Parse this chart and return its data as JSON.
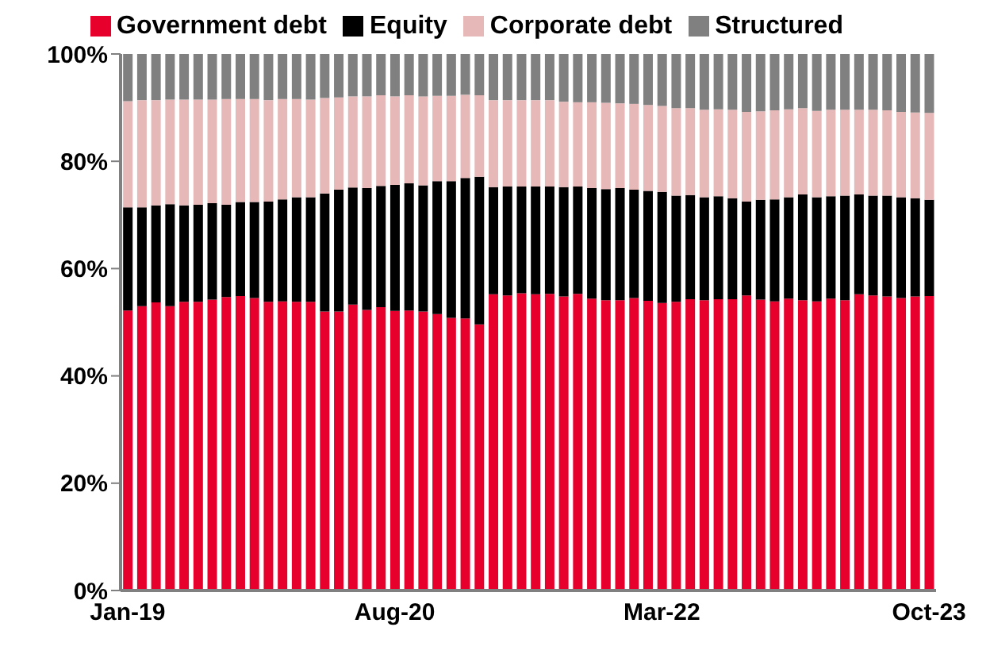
{
  "chart_data": {
    "type": "bar",
    "stacked": true,
    "legend": "top",
    "grid": false,
    "categories": [
      "Jan-19",
      null,
      null,
      null,
      null,
      null,
      null,
      null,
      null,
      null,
      null,
      null,
      null,
      null,
      null,
      null,
      null,
      null,
      null,
      "Aug-20",
      null,
      null,
      null,
      null,
      null,
      null,
      null,
      null,
      null,
      null,
      null,
      null,
      null,
      null,
      null,
      null,
      null,
      null,
      "Mar-22",
      null,
      null,
      null,
      null,
      null,
      null,
      null,
      null,
      null,
      null,
      null,
      null,
      null,
      null,
      null,
      null,
      null,
      null,
      "Oct-23"
    ],
    "ylim": [
      0,
      100
    ],
    "yticks": [
      {
        "value": 0,
        "label": "0%"
      },
      {
        "value": 20,
        "label": "20%"
      },
      {
        "value": 40,
        "label": "40%"
      },
      {
        "value": 60,
        "label": "60%"
      },
      {
        "value": 80,
        "label": "80%"
      },
      {
        "value": 100,
        "label": "100%"
      }
    ],
    "series": [
      {
        "name": "Government debt",
        "color": "#e8002d",
        "values": [
          52.2,
          53.0,
          53.7,
          53.0,
          53.8,
          53.8,
          54.2,
          54.7,
          54.9,
          54.5,
          53.8,
          53.9,
          53.8,
          53.8,
          52.0,
          52.0,
          53.3,
          52.3,
          52.8,
          52.1,
          52.2,
          52.0,
          51.5,
          50.8,
          50.7,
          49.6,
          55.2,
          55.0,
          55.4,
          55.2,
          55.3,
          54.8,
          55.3,
          54.4,
          54.1,
          54.1,
          54.5,
          54.0,
          53.6,
          53.8,
          54.3,
          54.1,
          54.3,
          54.3,
          55.0,
          54.2,
          53.9,
          54.4,
          54.1,
          53.9,
          54.4,
          54.1,
          55.2,
          55.0,
          54.8,
          54.5,
          54.8,
          54.9
        ]
      },
      {
        "name": "Equity",
        "color": "#000000",
        "values": [
          19.2,
          18.4,
          18.1,
          19.0,
          18.0,
          18.1,
          18.0,
          17.2,
          17.5,
          17.9,
          18.7,
          19.0,
          19.5,
          19.5,
          22.0,
          22.7,
          21.8,
          22.7,
          22.6,
          23.5,
          23.7,
          23.5,
          24.8,
          25.5,
          26.2,
          27.5,
          20.0,
          20.3,
          19.9,
          20.1,
          20.0,
          20.4,
          20.0,
          20.6,
          20.7,
          20.9,
          20.2,
          20.5,
          20.7,
          19.8,
          19.4,
          19.2,
          19.2,
          18.8,
          17.5,
          18.6,
          19.0,
          18.9,
          19.7,
          19.4,
          19.1,
          19.5,
          18.6,
          18.6,
          18.8,
          18.8,
          18.3,
          17.9
        ]
      },
      {
        "name": "Corporate debt",
        "color": "#e6b8b7",
        "values": [
          19.8,
          20.0,
          19.6,
          19.5,
          19.7,
          19.6,
          19.3,
          19.7,
          19.2,
          19.2,
          18.9,
          18.7,
          18.3,
          18.2,
          17.8,
          17.2,
          17.0,
          17.1,
          16.9,
          16.5,
          16.4,
          16.6,
          15.9,
          15.9,
          15.5,
          15.2,
          16.2,
          16.1,
          16.1,
          16.1,
          16.1,
          15.9,
          15.7,
          16.0,
          16.1,
          15.8,
          16.0,
          16.0,
          16.0,
          16.3,
          16.2,
          16.3,
          16.2,
          16.5,
          16.7,
          16.5,
          16.6,
          16.4,
          16.1,
          16.1,
          16.1,
          16.0,
          15.8,
          16.0,
          15.9,
          15.9,
          16.0,
          16.2
        ]
      },
      {
        "name": "Structured",
        "color": "#808080",
        "values": [
          8.8,
          8.6,
          8.6,
          8.5,
          8.5,
          8.5,
          8.5,
          8.4,
          8.4,
          8.4,
          8.6,
          8.4,
          8.4,
          8.5,
          8.2,
          8.1,
          7.9,
          7.9,
          7.7,
          7.9,
          7.7,
          7.9,
          7.8,
          7.8,
          7.6,
          7.7,
          8.6,
          8.6,
          8.6,
          8.6,
          8.6,
          8.9,
          9.0,
          9.0,
          9.1,
          9.2,
          9.3,
          9.5,
          9.7,
          10.1,
          10.1,
          10.4,
          10.3,
          10.4,
          10.8,
          10.7,
          10.5,
          10.3,
          10.1,
          10.6,
          10.4,
          10.4,
          10.4,
          10.4,
          10.5,
          10.8,
          10.9,
          11.0
        ]
      }
    ]
  }
}
